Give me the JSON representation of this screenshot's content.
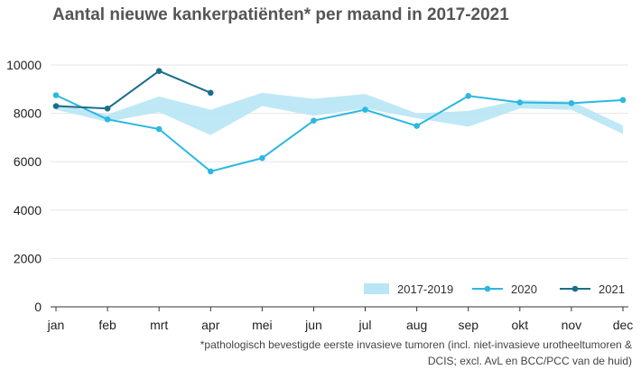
{
  "chart_data": {
    "type": "line",
    "title": "Aantal nieuwe kankerpatiënten* per maand in 2017-2021",
    "categories": [
      "jan",
      "feb",
      "mrt",
      "apr",
      "mei",
      "jun",
      "jul",
      "aug",
      "sep",
      "okt",
      "nov",
      "dec"
    ],
    "ylim": [
      0,
      10000
    ],
    "yticks": [
      0,
      2000,
      4000,
      6000,
      8000,
      10000
    ],
    "grid": true,
    "legend_position": "bottom-right",
    "band": {
      "name": "2017-2019",
      "low": [
        8150,
        7650,
        8050,
        7100,
        8300,
        7900,
        8200,
        7800,
        7450,
        8200,
        8150,
        7150
      ],
      "high": [
        8400,
        7950,
        8700,
        8150,
        8850,
        8600,
        8800,
        8000,
        8100,
        8550,
        8500,
        7500
      ],
      "color": "#b8e6f5"
    },
    "series": [
      {
        "name": "2020",
        "color": "#2cb8e0",
        "values": [
          8750,
          7750,
          7350,
          5600,
          6150,
          7700,
          8150,
          7480,
          8720,
          8450,
          8420,
          8550
        ]
      },
      {
        "name": "2021",
        "color": "#1b6e8a",
        "values": [
          8300,
          8200,
          9750,
          8850,
          null,
          null,
          null,
          null,
          null,
          null,
          null,
          null
        ]
      }
    ],
    "footnote_lines": [
      "*pathologisch bevestigde eerste invasieve tumoren (incl. niet-invasieve urotheeltumoren &",
      "DCIS; excl. AvL en BCC/PCC van de huid)"
    ]
  }
}
